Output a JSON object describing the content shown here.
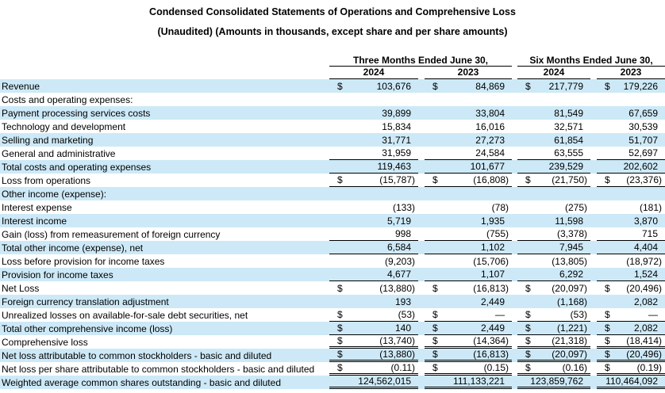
{
  "title": "Condensed Consolidated Statements of Operations and Comprehensive Loss",
  "subtitle": "(Unaudited) (Amounts in thousands, except share and per share amounts)",
  "colors": {
    "highlight_row": "#cde9f7",
    "text": "#000000",
    "border": "#000000"
  },
  "table": {
    "currency_symbol": "$",
    "group_headers": [
      "Three Months Ended June 30,",
      "Six Months Ended June 30,"
    ],
    "year_headers": [
      "2024",
      "2023",
      "2024",
      "2023"
    ],
    "rows": [
      {
        "label": "Revenue",
        "dollar": true,
        "highlight": true,
        "underline": "none",
        "values": [
          "103,676",
          "84,869",
          "217,779",
          "179,226"
        ]
      },
      {
        "label": "Costs and operating expenses:",
        "dollar": false,
        "highlight": false,
        "underline": "none",
        "values": [
          "",
          "",
          "",
          ""
        ]
      },
      {
        "label": "Payment processing services costs",
        "dollar": false,
        "highlight": true,
        "underline": "none",
        "values": [
          "39,899",
          "33,804",
          "81,549",
          "67,659"
        ]
      },
      {
        "label": "Technology and development",
        "dollar": false,
        "highlight": false,
        "underline": "none",
        "values": [
          "15,834",
          "16,016",
          "32,571",
          "30,539"
        ]
      },
      {
        "label": "Selling and marketing",
        "dollar": false,
        "highlight": true,
        "underline": "none",
        "values": [
          "31,771",
          "27,273",
          "61,854",
          "51,707"
        ]
      },
      {
        "label": "General and administrative",
        "dollar": false,
        "highlight": false,
        "underline": "single",
        "values": [
          "31,959",
          "24,584",
          "63,555",
          "52,697"
        ]
      },
      {
        "label": "Total costs and operating expenses",
        "dollar": false,
        "highlight": true,
        "underline": "single",
        "values": [
          "119,463",
          "101,677",
          "239,529",
          "202,602"
        ]
      },
      {
        "label": "Loss from operations",
        "dollar": true,
        "highlight": false,
        "underline": "single",
        "values": [
          "(15,787)",
          "(16,808)",
          "(21,750)",
          "(23,376)"
        ]
      },
      {
        "label": "Other income (expense):",
        "dollar": false,
        "highlight": true,
        "underline": "none",
        "values": [
          "",
          "",
          "",
          ""
        ]
      },
      {
        "label": "Interest expense",
        "dollar": false,
        "highlight": false,
        "underline": "none",
        "values": [
          "(133)",
          "(78)",
          "(275)",
          "(181)"
        ]
      },
      {
        "label": "Interest income",
        "dollar": false,
        "highlight": true,
        "underline": "none",
        "values": [
          "5,719",
          "1,935",
          "11,598",
          "3,870"
        ]
      },
      {
        "label": "Gain (loss) from remeasurement of foreign currency",
        "dollar": false,
        "highlight": false,
        "underline": "single",
        "values": [
          "998",
          "(755)",
          "(3,378)",
          "715"
        ]
      },
      {
        "label": "Total other income (expense), net",
        "dollar": false,
        "highlight": true,
        "underline": "single",
        "values": [
          "6,584",
          "1,102",
          "7,945",
          "4,404"
        ]
      },
      {
        "label": "Loss before provision for income taxes",
        "dollar": false,
        "highlight": false,
        "underline": "none",
        "values": [
          "(9,203)",
          "(15,706)",
          "(13,805)",
          "(18,972)"
        ]
      },
      {
        "label": "Provision for income taxes",
        "dollar": false,
        "highlight": true,
        "underline": "single",
        "values": [
          "4,677",
          "1,107",
          "6,292",
          "1,524"
        ]
      },
      {
        "label": "Net Loss",
        "dollar": true,
        "highlight": false,
        "underline": "none",
        "values": [
          "(13,880)",
          "(16,813)",
          "(20,097)",
          "(20,496)"
        ]
      },
      {
        "label": "Foreign currency translation adjustment",
        "dollar": false,
        "highlight": true,
        "underline": "none",
        "values": [
          "193",
          "2,449",
          "(1,168)",
          "2,082"
        ]
      },
      {
        "label": "Unrealized losses on available-for-sale debt securities, net",
        "dollar": true,
        "highlight": false,
        "underline": "single",
        "values": [
          "(53)",
          "—",
          "(53)",
          "—"
        ]
      },
      {
        "label": "Total other comprehensive income (loss)",
        "dollar": true,
        "highlight": true,
        "underline": "single",
        "values": [
          "140",
          "2,449",
          "(1,221)",
          "2,082"
        ]
      },
      {
        "label": "Comprehensive loss",
        "dollar": true,
        "highlight": false,
        "underline": "double",
        "values": [
          "(13,740)",
          "(14,364)",
          "(21,318)",
          "(18,414)"
        ]
      },
      {
        "label": "Net loss attributable to common stockholders - basic and diluted",
        "dollar": true,
        "highlight": true,
        "underline": "double",
        "values": [
          "(13,880)",
          "(16,813)",
          "(20,097)",
          "(20,496)"
        ]
      },
      {
        "label": "Net loss per share attributable to common stockholders - basic and diluted",
        "dollar": true,
        "highlight": false,
        "underline": "double",
        "values": [
          "(0.11)",
          "(0.15)",
          "(0.16)",
          "(0.19)"
        ]
      },
      {
        "label": "Weighted average common shares outstanding - basic and diluted",
        "dollar": false,
        "highlight": true,
        "underline": "double",
        "values": [
          "124,562,015",
          "111,133,221",
          "123,859,762",
          "110,464,092"
        ]
      }
    ]
  }
}
